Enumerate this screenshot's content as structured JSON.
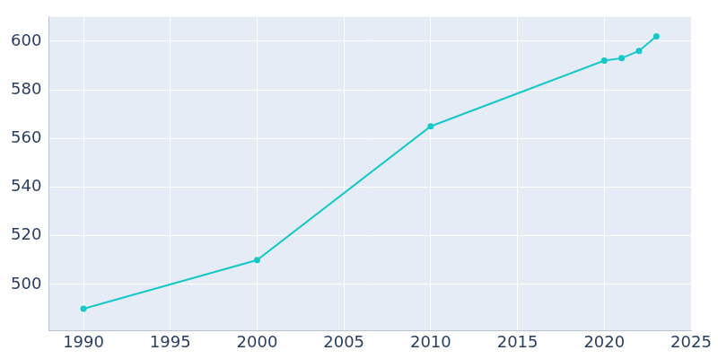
{
  "chart_data": {
    "type": "line",
    "x": [
      1990,
      2000,
      2010,
      2020,
      2021,
      2022,
      2023
    ],
    "values": [
      490,
      510,
      565,
      592,
      593,
      596,
      602
    ],
    "color": "#17c8c8",
    "marker": "circle",
    "xlim": [
      1988,
      2025
    ],
    "xticks": [
      1990,
      1995,
      2000,
      2005,
      2010,
      2015,
      2020,
      2025
    ],
    "ylim": [
      481,
      610
    ],
    "yticks": [
      500,
      520,
      540,
      560,
      580,
      600
    ],
    "grid": true
  }
}
